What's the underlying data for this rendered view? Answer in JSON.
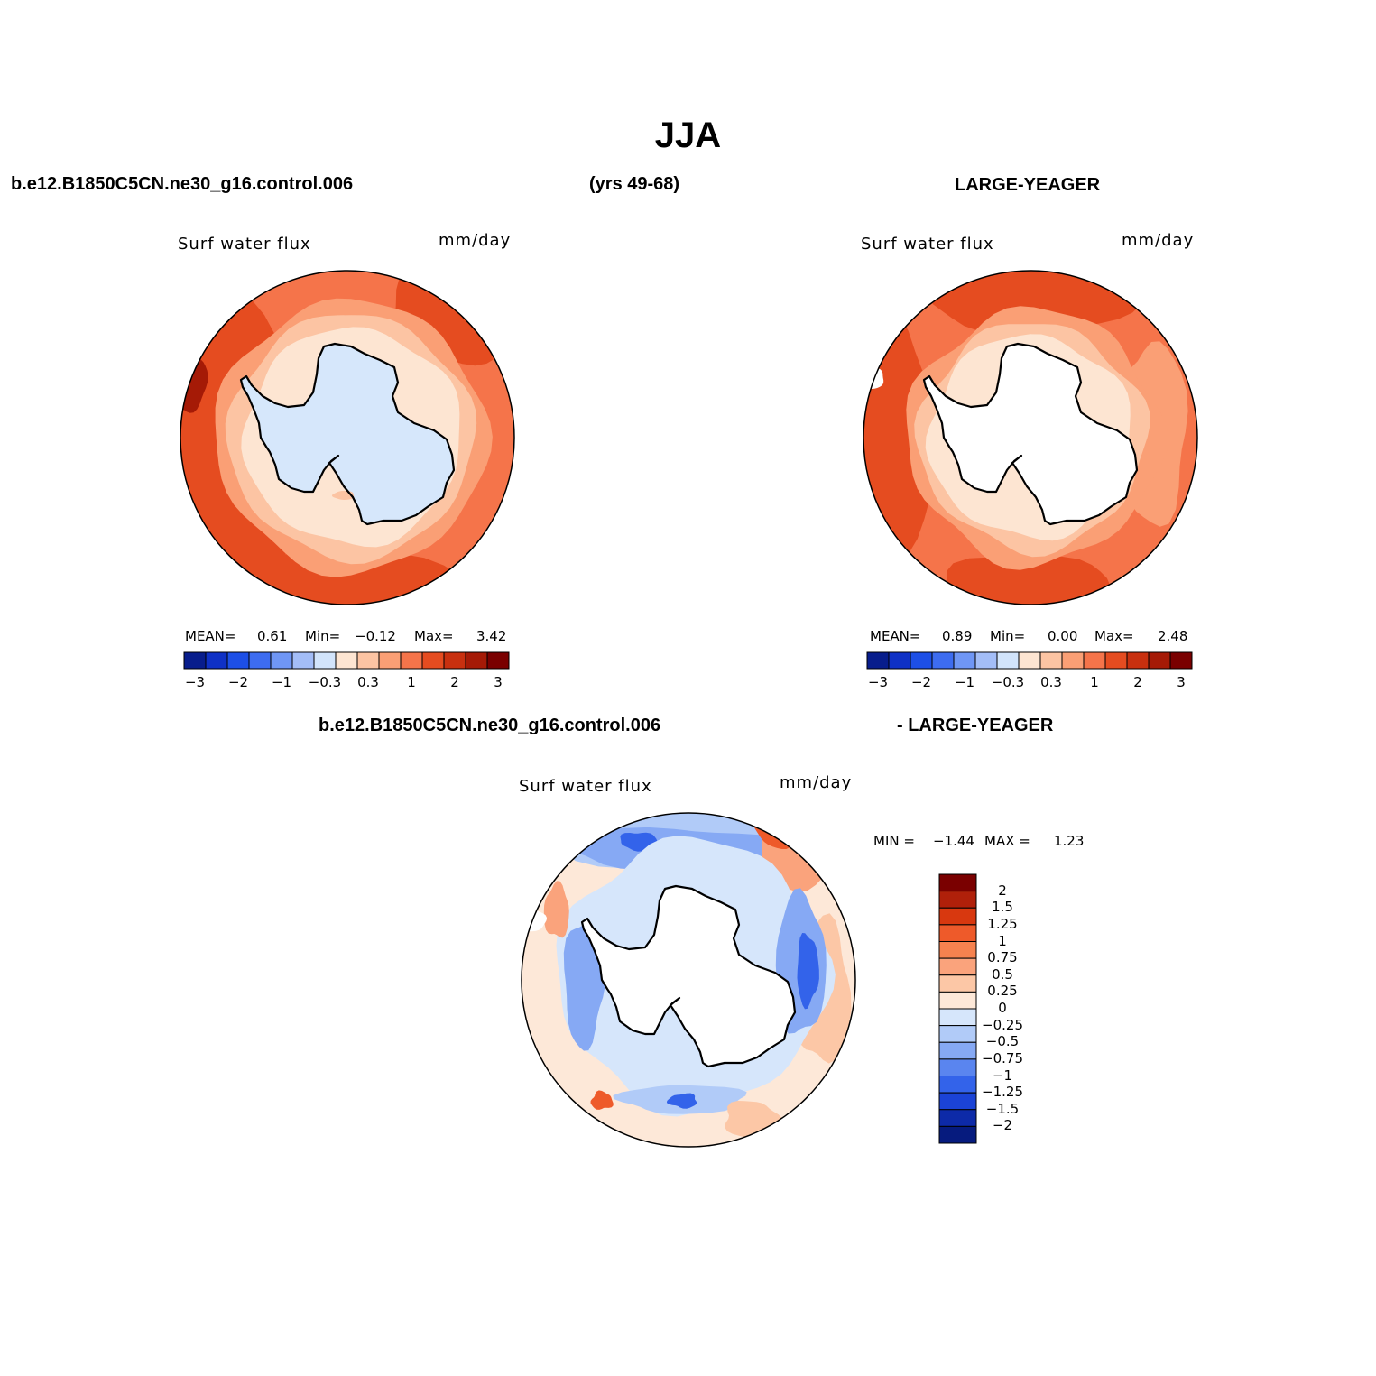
{
  "page": {
    "title": "JJA",
    "case1": "b.e12.B1850C5CN.ne30_g16.control.006",
    "years": "(yrs 49-68)",
    "case2": "LARGE-YEAGER",
    "diff_case1": "b.e12.B1850C5CN.ne30_g16.control.006",
    "diff_case2": "- LARGE-YEAGER"
  },
  "chart_data": [
    {
      "type": "map",
      "projection": "south-polar-stereographic",
      "variable": "Surf water flux",
      "units": "mm/day",
      "stats": {
        "mean_label": "MEAN=",
        "mean": "0.61",
        "min_label": "Min=",
        "min": "−0.12",
        "max_label": "Max=",
        "max": "3.42"
      },
      "colorbar_ticks": [
        "−3",
        "−2",
        "−1",
        "−0.3",
        "0.3",
        "1",
        "2",
        "3"
      ],
      "colorbar_colors": [
        "#081d8c",
        "#0f31c6",
        "#1d4fe6",
        "#3d6cf0",
        "#6f96f5",
        "#a3bdf7",
        "#d2e4fb",
        "#fde5d2",
        "#fcc4a3",
        "#fa9f75",
        "#f5744a",
        "#e54c20",
        "#c8300f",
        "#a51a06",
        "#7a0000"
      ]
    },
    {
      "type": "map",
      "projection": "south-polar-stereographic",
      "variable": "Surf water flux",
      "units": "mm/day",
      "stats": {
        "mean_label": "MEAN=",
        "mean": "0.89",
        "min_label": "Min=",
        "min": "0.00",
        "max_label": "Max=",
        "max": "2.48"
      },
      "colorbar_ticks": [
        "−3",
        "−2",
        "−1",
        "−0.3",
        "0.3",
        "1",
        "2",
        "3"
      ],
      "colorbar_colors": [
        "#081d8c",
        "#0f31c6",
        "#1d4fe6",
        "#3d6cf0",
        "#6f96f5",
        "#a3bdf7",
        "#d2e4fb",
        "#fde5d2",
        "#fcc4a3",
        "#fa9f75",
        "#f5744a",
        "#e54c20",
        "#c8300f",
        "#a51a06",
        "#7a0000"
      ]
    },
    {
      "type": "map",
      "projection": "south-polar-stereographic",
      "variable": "Surf water flux",
      "units": "mm/day",
      "minmax": {
        "min_label": "MIN =",
        "min": "−1.44",
        "max_label": "MAX =",
        "max": "1.23"
      },
      "colorbar_ticks": [
        "2",
        "1.5",
        "1.25",
        "1",
        "0.75",
        "0.5",
        "0.25",
        "0",
        "−0.25",
        "−0.5",
        "−0.75",
        "−1",
        "−1.25",
        "−1.5",
        "−2"
      ],
      "colorbar_colors": [
        "#7a0000",
        "#b0200a",
        "#d8380f",
        "#ee5a2a",
        "#f6824f",
        "#faa37c",
        "#fcc7a6",
        "#fde8d8",
        "#d6e6fb",
        "#b1cbf8",
        "#86a9f4",
        "#5a85ef",
        "#3363ea",
        "#1b43d6",
        "#0d2aa8",
        "#061b7e"
      ]
    }
  ]
}
